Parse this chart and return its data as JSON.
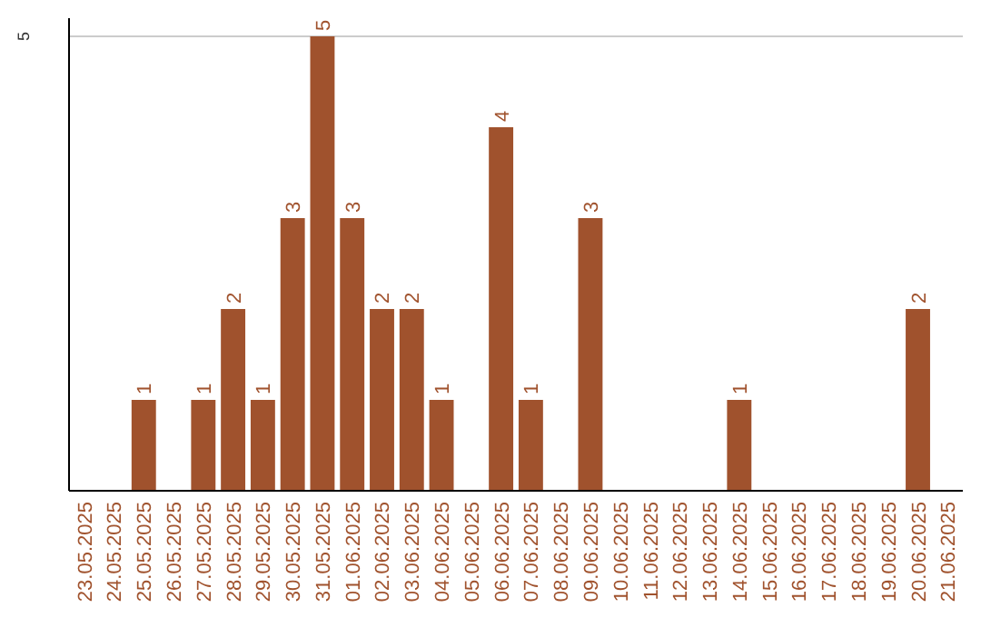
{
  "chart_data": {
    "type": "bar",
    "categories": [
      "23.05.2025",
      "24.05.2025",
      "25.05.2025",
      "26.05.2025",
      "27.05.2025",
      "28.05.2025",
      "29.05.2025",
      "30.05.2025",
      "31.05.2025",
      "01.06.2025",
      "02.06.2025",
      "03.06.2025",
      "04.06.2025",
      "05.06.2025",
      "06.06.2025",
      "07.06.2025",
      "08.06.2025",
      "09.06.2025",
      "10.06.2025",
      "11.06.2025",
      "12.06.2025",
      "13.06.2025",
      "14.06.2025",
      "15.06.2025",
      "16.06.2025",
      "17.06.2025",
      "18.06.2025",
      "19.06.2025",
      "20.06.2025",
      "21.06.2025"
    ],
    "values": [
      0,
      0,
      1,
      0,
      1,
      2,
      1,
      3,
      5,
      3,
      2,
      2,
      1,
      0,
      4,
      1,
      0,
      3,
      0,
      0,
      0,
      0,
      1,
      0,
      0,
      0,
      0,
      0,
      2,
      0
    ],
    "value_labels": [
      null,
      null,
      "1",
      null,
      "1",
      "2",
      "1",
      "3",
      "5",
      "3",
      "2",
      "2",
      "1",
      null,
      "4",
      "1",
      null,
      "3",
      null,
      null,
      null,
      null,
      "1",
      null,
      null,
      null,
      null,
      null,
      "2",
      null
    ],
    "color": "#a0522d",
    "ylim": [
      0,
      5
    ],
    "yticks": [
      5
    ],
    "ref_lines": [
      {
        "axis": "y",
        "value": 5,
        "color": "#cccccc"
      }
    ]
  }
}
